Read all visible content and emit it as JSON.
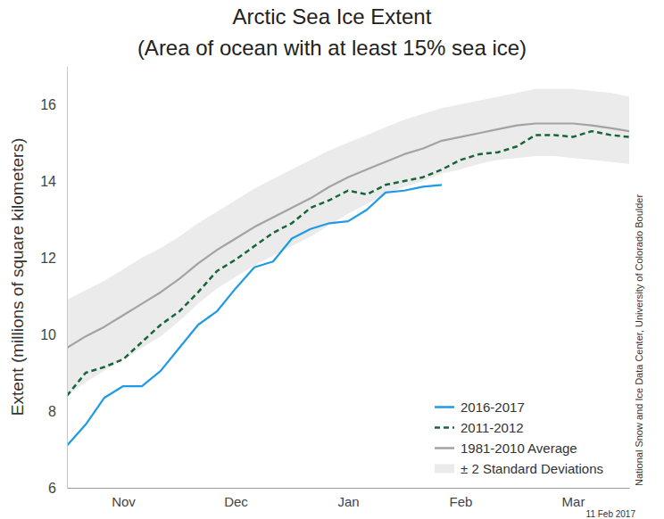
{
  "chart_data": {
    "type": "line",
    "title": "Arctic Sea Ice Extent",
    "subtitle": "(Area of ocean with at least 15% sea ice)",
    "y_label": "Extent (millions of square kilometers)",
    "source": "National Snow and Ice Data Center, University of Colorado Boulder",
    "date": "11 Feb 2017",
    "categories": [
      null,
      null,
      null,
      "Nov",
      null,
      null,
      null,
      null,
      null,
      "Dec",
      null,
      null,
      null,
      null,
      null,
      "Jan",
      null,
      null,
      null,
      null,
      null,
      "Feb",
      null,
      null,
      null,
      null,
      null,
      "Mar",
      null,
      null,
      null
    ],
    "ylim": [
      6,
      17
    ],
    "yticks": [
      6,
      8,
      10,
      12,
      14,
      16
    ],
    "legend": "lower right",
    "series": [
      {
        "name": "2016-2017",
        "type": "line",
        "color": "#1f9ae5",
        "line_style": "solid",
        "values": [
          7.1,
          7.65,
          8.35,
          8.65,
          8.65,
          9.05,
          9.65,
          10.25,
          10.6,
          11.2,
          11.75,
          11.9,
          12.5,
          12.75,
          12.9,
          12.95,
          13.25,
          13.7,
          13.75,
          13.85,
          13.9,
          null,
          null,
          null,
          null,
          null,
          null,
          null,
          null,
          null,
          null
        ]
      },
      {
        "name": "2011-2012",
        "type": "line",
        "color": "#17653a",
        "line_style": "dashed",
        "values": [
          8.4,
          9.0,
          9.15,
          9.35,
          9.8,
          10.25,
          10.6,
          11.1,
          11.65,
          11.95,
          12.3,
          12.65,
          12.9,
          13.3,
          13.5,
          13.75,
          13.65,
          13.9,
          14.0,
          14.1,
          14.3,
          14.55,
          14.7,
          14.75,
          14.9,
          15.2,
          15.2,
          15.15,
          15.3,
          15.2,
          15.15
        ]
      },
      {
        "name": "1981-2010 Average",
        "type": "line",
        "color": "#a3a3a3",
        "line_style": "solid",
        "values": [
          9.65,
          9.95,
          10.2,
          10.5,
          10.8,
          11.1,
          11.45,
          11.85,
          12.2,
          12.5,
          12.8,
          13.05,
          13.3,
          13.55,
          13.85,
          14.1,
          14.3,
          14.5,
          14.7,
          14.85,
          15.05,
          15.15,
          15.25,
          15.35,
          15.45,
          15.5,
          15.5,
          15.5,
          15.45,
          15.38,
          15.3
        ]
      },
      {
        "name": "± 2 Standard Deviations",
        "type": "area",
        "color": "#ebebeb",
        "upper": [
          10.9,
          11.15,
          11.4,
          11.7,
          12.0,
          12.25,
          12.55,
          12.9,
          13.2,
          13.5,
          13.8,
          14.05,
          14.3,
          14.55,
          14.8,
          15.0,
          15.2,
          15.4,
          15.6,
          15.75,
          15.9,
          16.0,
          16.1,
          16.2,
          16.3,
          16.4,
          16.4,
          16.4,
          16.35,
          16.3,
          16.2
        ],
        "lower": [
          8.4,
          8.75,
          9.05,
          9.35,
          9.65,
          9.95,
          10.35,
          10.8,
          11.2,
          11.5,
          11.8,
          12.05,
          12.3,
          12.55,
          12.85,
          13.15,
          13.4,
          13.65,
          13.85,
          14.0,
          14.2,
          14.3,
          14.45,
          14.55,
          14.6,
          14.65,
          14.65,
          14.6,
          14.55,
          14.5,
          14.45
        ]
      }
    ]
  }
}
